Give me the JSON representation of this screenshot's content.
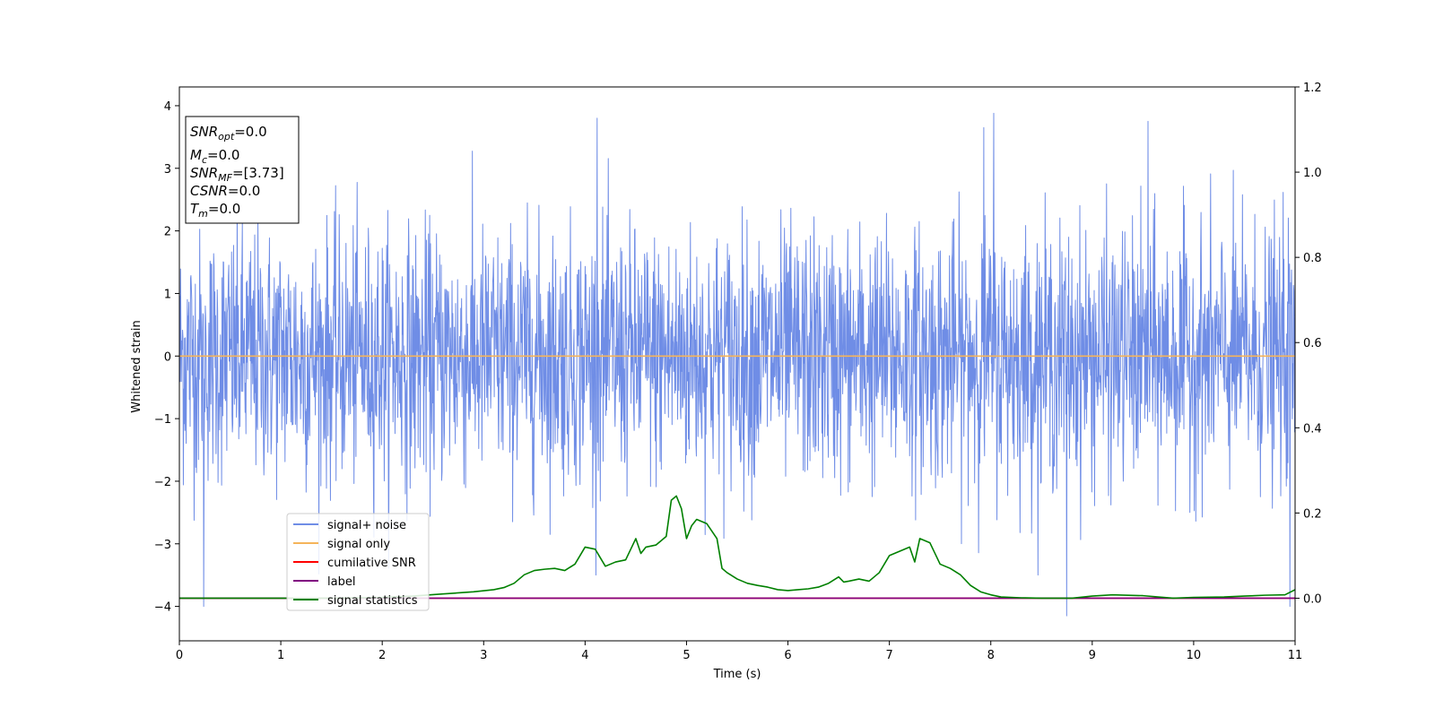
{
  "chart_data": {
    "type": "line",
    "xlabel": "Time (s)",
    "ylabel": "Whitened strain",
    "xlim": [
      0,
      11
    ],
    "ylim_left": [
      -4.55,
      4.3
    ],
    "ylim_right": [
      -0.1,
      1.2
    ],
    "x_ticks": [
      0,
      1,
      2,
      3,
      4,
      5,
      6,
      7,
      8,
      9,
      10,
      11
    ],
    "y_ticks_left": [
      4,
      3,
      2,
      1,
      0,
      -1,
      -2,
      -3,
      -4
    ],
    "y_tick_labels_left": [
      "4",
      "3",
      "2",
      "1",
      "0",
      "−1",
      "−2",
      "−3",
      "−4"
    ],
    "y_ticks_right": [
      1.2,
      1.0,
      0.8,
      0.6,
      0.4,
      0.2,
      0.0
    ],
    "y_tick_labels_right": [
      "1.2",
      "1.0",
      "0.8",
      "0.6",
      "0.4",
      "0.2",
      "0.0"
    ],
    "legend_position": "lower-left",
    "grid": false,
    "annotation": [
      {
        "base": "SNR",
        "sub": "opt",
        "value": "=0.0"
      },
      {
        "base": "M",
        "sub": "c",
        "value": "=0.0"
      },
      {
        "base": "SNR",
        "sub": "MF",
        "value": "=[3.73]"
      },
      {
        "base": "CSNR",
        "sub": "",
        "value": "=0.0"
      },
      {
        "base": "T",
        "sub": "m",
        "value": "=0.0"
      }
    ],
    "series": [
      {
        "name": "signal+ noise",
        "color": "#6f8de6",
        "axis": "left",
        "kind": "noise",
        "sigma": 1.0,
        "samples": 2800,
        "peaks": [
          {
            "x": 4.12,
            "y": 3.8
          },
          {
            "x": 8.03,
            "y": 3.88
          },
          {
            "x": 7.93,
            "y": 3.65
          },
          {
            "x": 9.55,
            "y": 3.75
          },
          {
            "x": 0.24,
            "y": -4.0
          },
          {
            "x": 8.75,
            "y": -4.15
          },
          {
            "x": 10.95,
            "y": -4.0
          }
        ]
      },
      {
        "name": "signal only",
        "color": "#f5b45a",
        "axis": "left",
        "kind": "line",
        "x": [
          0,
          11
        ],
        "y": [
          0,
          0
        ]
      },
      {
        "name": "cumilative SNR",
        "color": "#ff0000",
        "axis": "right",
        "kind": "line",
        "x": [
          0,
          11
        ],
        "y": [
          0,
          0
        ]
      },
      {
        "name": "label",
        "color": "#800080",
        "axis": "right",
        "kind": "line",
        "x": [
          0,
          11
        ],
        "y": [
          0,
          0
        ]
      },
      {
        "name": "signal statistics",
        "color": "#008000",
        "axis": "right",
        "kind": "line",
        "x": [
          0,
          0.5,
          1.0,
          1.5,
          2.0,
          2.3,
          2.6,
          2.9,
          3.1,
          3.2,
          3.3,
          3.4,
          3.5,
          3.6,
          3.7,
          3.8,
          3.9,
          4.0,
          4.1,
          4.2,
          4.3,
          4.4,
          4.5,
          4.55,
          4.6,
          4.7,
          4.8,
          4.85,
          4.9,
          4.95,
          5.0,
          5.05,
          5.1,
          5.2,
          5.3,
          5.35,
          5.4,
          5.5,
          5.6,
          5.7,
          5.8,
          5.9,
          6.0,
          6.1,
          6.2,
          6.3,
          6.4,
          6.5,
          6.55,
          6.6,
          6.7,
          6.8,
          6.9,
          7.0,
          7.1,
          7.2,
          7.25,
          7.3,
          7.4,
          7.5,
          7.6,
          7.7,
          7.8,
          7.9,
          8.0,
          8.1,
          8.3,
          8.5,
          8.8,
          9.0,
          9.2,
          9.5,
          9.8,
          10.0,
          10.3,
          10.5,
          10.7,
          10.9,
          11.0
        ],
        "y": [
          0.0,
          0.0,
          0.0,
          0.0,
          0.002,
          0.005,
          0.01,
          0.015,
          0.02,
          0.025,
          0.035,
          0.055,
          0.065,
          0.068,
          0.07,
          0.065,
          0.08,
          0.12,
          0.115,
          0.075,
          0.085,
          0.09,
          0.14,
          0.105,
          0.12,
          0.125,
          0.145,
          0.23,
          0.24,
          0.21,
          0.14,
          0.17,
          0.185,
          0.175,
          0.14,
          0.07,
          0.06,
          0.045,
          0.035,
          0.03,
          0.026,
          0.02,
          0.018,
          0.02,
          0.022,
          0.026,
          0.035,
          0.05,
          0.038,
          0.04,
          0.045,
          0.04,
          0.06,
          0.1,
          0.11,
          0.12,
          0.085,
          0.14,
          0.13,
          0.08,
          0.07,
          0.055,
          0.03,
          0.015,
          0.008,
          0.003,
          0.001,
          0.0,
          0.0,
          0.005,
          0.008,
          0.006,
          0.0,
          0.002,
          0.003,
          0.005,
          0.007,
          0.008,
          0.02
        ]
      }
    ]
  }
}
